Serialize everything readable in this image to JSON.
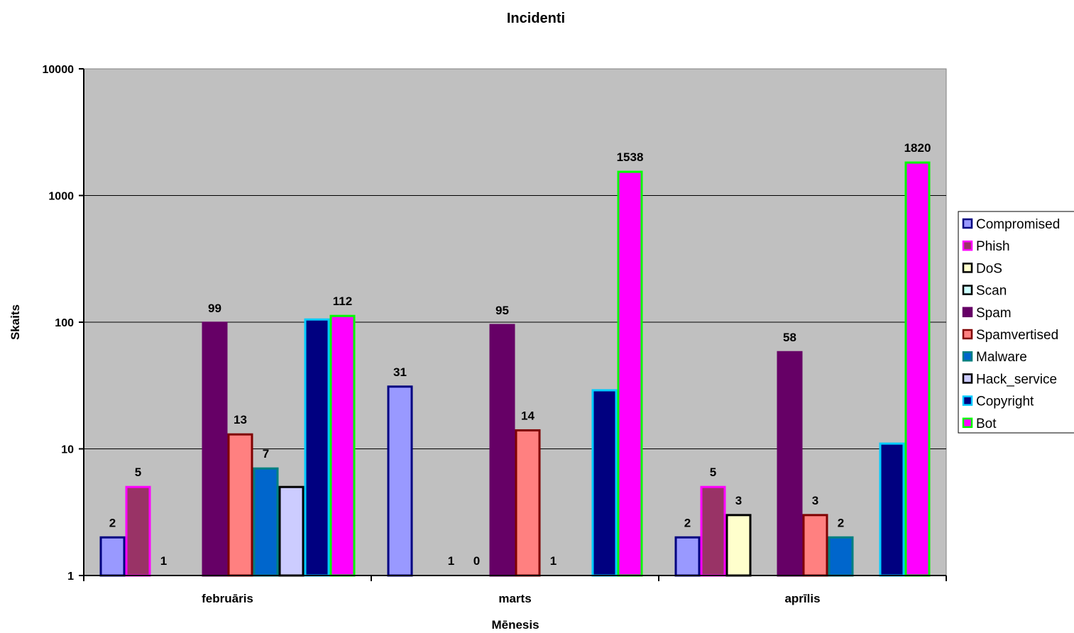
{
  "chart_data": {
    "type": "bar",
    "title": "Incidenti",
    "xlabel": "Mēnesis",
    "ylabel": "Skaits",
    "yscale": "log",
    "ylim": [
      1,
      10000
    ],
    "yticks": [
      1,
      10,
      100,
      1000,
      10000
    ],
    "ytick_labels": [
      "1",
      "10",
      "100",
      "1000",
      "10000"
    ],
    "grid": true,
    "legend_position": "right",
    "categories": [
      "februāris",
      "marts",
      "aprīlis"
    ],
    "series": [
      {
        "name": "Compromised",
        "fill": "#9999ff",
        "border": "#000080",
        "values": [
          2,
          31,
          2
        ],
        "labels": [
          "2",
          "31",
          "2"
        ]
      },
      {
        "name": "Phish",
        "fill": "#993366",
        "border": "#ff00ff",
        "values": [
          5,
          null,
          5
        ],
        "labels": [
          "5",
          null,
          "5"
        ]
      },
      {
        "name": "DoS",
        "fill": "#ffffcc",
        "border": "#000000",
        "values": [
          1,
          1,
          3
        ],
        "labels": [
          "1",
          "1",
          "3"
        ]
      },
      {
        "name": "Scan",
        "fill": "#ccffff",
        "border": "#000000",
        "values": [
          null,
          0,
          null
        ],
        "labels": [
          null,
          "0",
          null
        ]
      },
      {
        "name": "Spam",
        "fill": "#660066",
        "border": "#660066",
        "values": [
          99,
          95,
          58
        ],
        "labels": [
          "99",
          "95",
          "58"
        ]
      },
      {
        "name": "Spamvertised",
        "fill": "#ff8080",
        "border": "#800000",
        "values": [
          13,
          14,
          3
        ],
        "labels": [
          "13",
          "14",
          "3"
        ]
      },
      {
        "name": "Malware",
        "fill": "#0066cc",
        "border": "#008080",
        "values": [
          7,
          1,
          2
        ],
        "labels": [
          "7",
          "1",
          "2"
        ]
      },
      {
        "name": "Hack_service",
        "fill": "#ccccff",
        "border": "#000000",
        "values": [
          5,
          null,
          null
        ],
        "labels": [
          null,
          null,
          null
        ]
      },
      {
        "name": "Copyright",
        "fill": "#000080",
        "border": "#00ccff",
        "values": [
          105,
          29,
          11
        ],
        "labels": [
          null,
          null,
          null
        ]
      },
      {
        "name": "Bot",
        "fill": "#ff00ff",
        "border": "#00ff00",
        "values": [
          112,
          1538,
          1820
        ],
        "labels": [
          "112",
          "1538",
          "1820"
        ]
      }
    ]
  }
}
